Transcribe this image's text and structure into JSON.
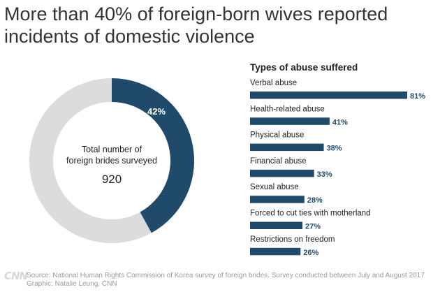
{
  "title_line1": "More than 40% of foreign-born wives reported",
  "title_line2": "incidents of domestic violence",
  "colors": {
    "accent": "#1f4a6a",
    "remainder": "#dcdcdc",
    "text": "#222222",
    "footer": "#9a9a9a"
  },
  "chart_data": [
    {
      "type": "pie",
      "variant": "donut",
      "slices": [
        {
          "label": "42%",
          "value": 42
        },
        {
          "label": "",
          "value": 58
        }
      ],
      "center_label_line1": "Total number of",
      "center_label_line2": "foreign brides surveyed",
      "center_value": "920"
    },
    {
      "type": "bar",
      "orientation": "horizontal",
      "title": "Types of abuse suffered",
      "categories": [
        "Verbal abuse",
        "Health-related abuse",
        "Physical abuse",
        "Financial abuse",
        "Sexual abuse",
        "Forced to cut ties with motherland",
        "Restrictions on freedom"
      ],
      "values": [
        81,
        41,
        38,
        33,
        28,
        27,
        26
      ],
      "value_labels": [
        "81%",
        "41%",
        "38%",
        "33%",
        "28%",
        "27%",
        "26%"
      ],
      "xlim": [
        0,
        100
      ]
    }
  ],
  "footer": {
    "logo": "CNN",
    "source": "Source: National Human Rights Commission of Korea survey of foreign brides. Survey conducted between July and August 2017",
    "credit": "Graphic: Natalie Leung, CNN"
  }
}
